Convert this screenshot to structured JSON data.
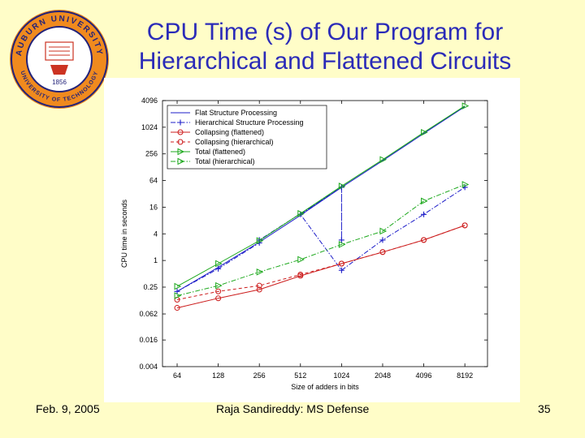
{
  "slide": {
    "title_line1": "CPU Time (s) of Our Program for",
    "title_line2": "Hierarchical and Flattened Circuits",
    "date": "Feb. 9, 2005",
    "author": "Raja Sandireddy: MS Defense",
    "page": "35"
  },
  "logo": {
    "top_text": "AUBURN UNIVERSITY",
    "bottom_text": "UNIVERSITY OF TECHNOLOGY",
    "year": "1856"
  },
  "chart_data": {
    "type": "line",
    "xscale": "log2",
    "yscale": "log2",
    "x": [
      64,
      128,
      256,
      512,
      1024,
      2048,
      4096,
      8192
    ],
    "x_tick_labels": [
      "64",
      "128",
      "256",
      "512",
      "1024",
      "2048",
      "4096",
      "8192"
    ],
    "y_ticks": [
      0.004,
      0.016,
      0.062,
      0.25,
      1,
      4,
      16,
      64,
      256,
      1024,
      4096
    ],
    "y_tick_labels": [
      "0.004",
      "0.016",
      "0.062",
      "0.25",
      "1",
      "4",
      "16",
      "64",
      "256",
      "1024",
      "4096"
    ],
    "xlim": [
      50,
      12000
    ],
    "ylim": [
      0.004,
      4096
    ],
    "xlabel": "Size of adders in bits",
    "ylabel": "CPU time in seconds",
    "legend_position": "top-left",
    "series": [
      {
        "name": "Flat Structure Processing",
        "color": "#1c1cc8",
        "dash": "",
        "marker": "none",
        "values": [
          0.2,
          0.7,
          2.6,
          10.5,
          45,
          180,
          740,
          3000
        ]
      },
      {
        "name": "Hierarchical Structure Processing",
        "color": "#1c1cc8",
        "dash": "6 2 1.5 2",
        "marker": "plus",
        "values": [
          0.2,
          0.65,
          2.5,
          2.9,
          45,
          2.9,
          45,
          11,
          0.6,
          2.9,
          11,
          45
        ],
        "x": [
          64,
          128,
          256,
          256,
          1024,
          1024,
          1024,
          512,
          1024,
          2048,
          4096,
          8192
        ]
      },
      {
        "name": "Collapsing (flattened)",
        "color": "#cc1c1c",
        "dash": "",
        "marker": "circle",
        "values": [
          0.085,
          0.14,
          0.22,
          0.45,
          0.85,
          1.55,
          2.9,
          6.2
        ]
      },
      {
        "name": "Collapsing (hierarchical)",
        "color": "#cc1c1c",
        "dash": "4 3",
        "marker": "circle",
        "values": [
          0.13,
          0.2,
          0.27,
          0.48,
          0.85,
          1.55,
          2.9,
          6.2
        ]
      },
      {
        "name": "Total (flattened)",
        "color": "#1ca81c",
        "dash": "",
        "marker": "triangle",
        "values": [
          0.26,
          0.85,
          2.8,
          11.5,
          48,
          190,
          780,
          3100
        ]
      },
      {
        "name": "Total (hierarchical)",
        "color": "#1ca81c",
        "dash": "6 2 1.5 2",
        "marker": "triangle",
        "values": [
          0.16,
          0.27,
          0.55,
          1.05,
          2.3,
          4.6,
          22,
          52
        ]
      }
    ]
  }
}
